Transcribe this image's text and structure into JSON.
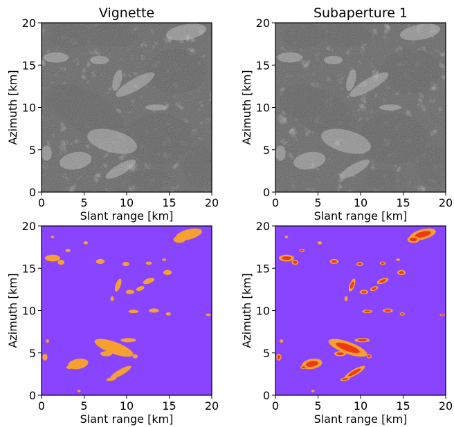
{
  "figure": {
    "colors": {
      "sar_background": "#1f1f1f",
      "mask_background": "#8844ff",
      "mask_ice_class": "#f5a030",
      "mask_core_class": "#ee3a12"
    }
  },
  "chart_data": [
    {
      "type": "heatmap",
      "title": "Vignette",
      "xlabel": "Slant range [km]",
      "ylabel": "Azimuth [km]",
      "xlim": [
        0,
        20
      ],
      "ylim": [
        0,
        20
      ],
      "xticks": [
        "0",
        "5",
        "10",
        "15",
        "20"
      ],
      "yticks": [
        "0",
        "5",
        "10",
        "15",
        "20"
      ],
      "content": "grayscale SAR intensity image",
      "grid": false
    },
    {
      "type": "heatmap",
      "title": "Subaperture 1",
      "xlabel": "Slant range [km]",
      "ylabel": "Azimuth [km]",
      "xlim": [
        0,
        20
      ],
      "ylim": [
        0,
        20
      ],
      "xticks": [
        "0",
        "5",
        "10",
        "15",
        "20"
      ],
      "yticks": [
        "0",
        "5",
        "10",
        "15",
        "20"
      ],
      "content": "grayscale SAR intensity image",
      "grid": false
    },
    {
      "type": "heatmap",
      "title": "",
      "xlabel": "Slant range [km]",
      "ylabel": "Azimuth [km]",
      "xlim": [
        0,
        20
      ],
      "ylim": [
        0,
        20
      ],
      "xticks": [
        "0",
        "5",
        "10",
        "15",
        "20"
      ],
      "yticks": [
        "0",
        "5",
        "10",
        "15",
        "20"
      ],
      "content": "two-class segmentation mask (orange regions on purple background)",
      "grid": false
    },
    {
      "type": "heatmap",
      "title": "",
      "xlabel": "Slant range [km]",
      "ylabel": "Azimuth [km]",
      "xlim": [
        0,
        20
      ],
      "ylim": [
        0,
        20
      ],
      "xticks": [
        "0",
        "5",
        "10",
        "15",
        "20"
      ],
      "yticks": [
        "0",
        "5",
        "10",
        "15",
        "20"
      ],
      "content": "three-class segmentation mask (orange and red regions on purple background)",
      "grid": false
    }
  ]
}
